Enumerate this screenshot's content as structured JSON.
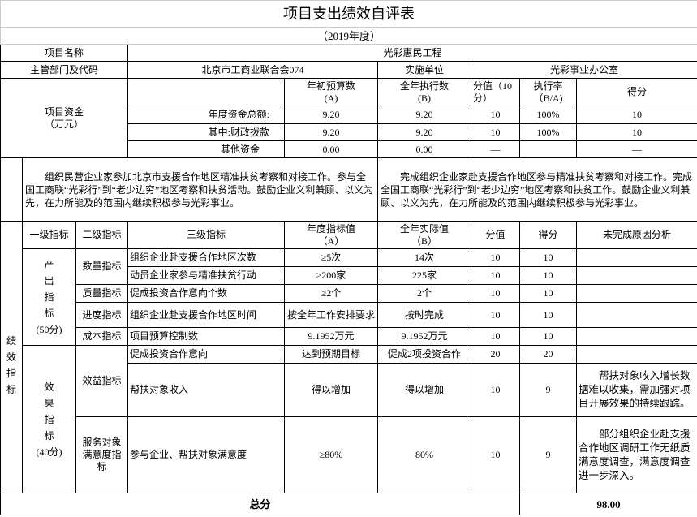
{
  "title": "项目支出绩效自评表",
  "subtitle": "（2019年度）",
  "project": {
    "name_label": "项目名称",
    "name_value": "光彩惠民工程"
  },
  "dept": {
    "label": "主管部门及代码",
    "value": "北京市工商业联合会074",
    "unit_label": "实施单位",
    "unit_value": "光彩事业办公室"
  },
  "funds": {
    "label": "项目资金\n（万元）",
    "headers": [
      "年初预算数\n(A)",
      "全年执行数\n(B)",
      "分值（10分）",
      "执行率\n（B/A)",
      "得分"
    ],
    "rows": [
      {
        "label": "年度资金总额:",
        "a": "9.20",
        "b": "9.20",
        "score_value": "10",
        "rate": "100%",
        "score": "10"
      },
      {
        "label": "其中:财政拨款",
        "a": "9.20",
        "b": "9.20",
        "score_value": "10",
        "rate": "100%",
        "score": "10"
      },
      {
        "label": "其他资金",
        "a": "0.00",
        "b": "0.00",
        "score_value": "—",
        "rate": "",
        "score": "—"
      }
    ]
  },
  "goals": {
    "planned": "组织民营企业家参加北京市支援合作地区精准扶贫考察和对接工作。参与全国工商联“光彩行”到“老少边穷”地区考察和扶贫活动。鼓励企业义利兼顾、以义为先，在力所能及的范围内继续积极参与光彩事业。",
    "actual": "完成组织企业家赴支援合作地区参与精准扶贫考察和对接工作。完成全国工商联“光彩行”到“老少边穷”地区考察和扶贫工作。鼓励企业义利兼顾、以义为先，在力所能及的范围内继续积极参与光彩事业。"
  },
  "indicators": {
    "section_label": "绩效指标",
    "headers": [
      "一级指标",
      "二级指标",
      "三级指标",
      "年度指标值\n（A）",
      "全年实际值\n（B）",
      "分值",
      "得分",
      "未完成原因分析"
    ],
    "output_label": "产出指标(50分)",
    "effect_label": "效果指标(40分)",
    "output": [
      {
        "level2": "数量指标",
        "level3": "组织企业赴支援合作地区次数",
        "a": "≥5次",
        "b": "14次",
        "value": "10",
        "score": "10",
        "reason": ""
      },
      {
        "level2": "",
        "level3": "动员企业家参与精准扶贫行动",
        "a": "≥200家",
        "b": "225家",
        "value": "10",
        "score": "10",
        "reason": ""
      },
      {
        "level2": "质量指标",
        "level3": "促成投资合作意向个数",
        "a": "≥2个",
        "b": "2个",
        "value": "10",
        "score": "10",
        "reason": ""
      },
      {
        "level2": "进度指标",
        "level3": "组织企业赴支援合作地区时间",
        "a": "按全年工作安排要求",
        "b": "按时完成",
        "value": "10",
        "score": "10",
        "reason": ""
      },
      {
        "level2": "成本指标",
        "level3": "项目预算控制数",
        "a": "9.1952万元",
        "b": "9.1952万元",
        "value": "10",
        "score": "10",
        "reason": ""
      }
    ],
    "effect": [
      {
        "level2": "效益指标",
        "level3": "促成投资合作意向",
        "a": "达到预期目标",
        "b": "促成2项投资合作",
        "value": "20",
        "score": "20",
        "reason": ""
      },
      {
        "level2": "",
        "level3": "帮扶对象收入",
        "a": "得以增加",
        "b": "得以增加",
        "value": "10",
        "score": "9",
        "reason": "帮扶对象收入增长数据难以收集，需加强对项目开展效果的持续跟踪。"
      },
      {
        "level2": "服务对象满意度指标",
        "level3": "参与企业、帮扶对象满意度",
        "a": "≥80%",
        "b": "80%",
        "value": "10",
        "score": "9",
        "reason": "部分组织企业赴支援合作地区调研工作无纸质满意度调查，满意度调查进一步深入。"
      }
    ]
  },
  "total": {
    "label": "总分",
    "value": "98.00"
  }
}
